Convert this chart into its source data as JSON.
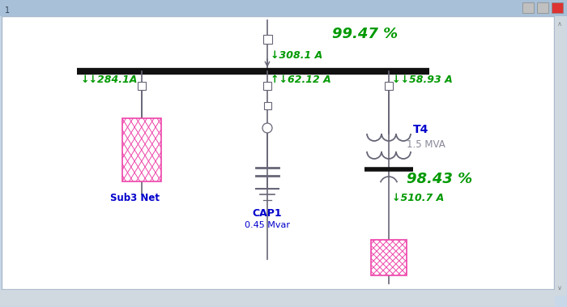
{
  "window_bg": "#c8d8e8",
  "diagram_bg": "#ffffff",
  "busbar_color": "#111111",
  "line_color": "#666677",
  "pink_color": "#ee44aa",
  "green_text_color": "#009900",
  "blue_text_color": "#0000cc",
  "gray_text_color": "#888899",
  "source_label": "308.1 A",
  "source_pct": "99.47 %",
  "load1_label": "↓284.1A",
  "load1_name": "Sub3 Net",
  "load2_label": "↓62.12 A",
  "load2_name": "CAP1",
  "load2_mvar": "0.45 Mvar",
  "load3_label": "↓58.93 A",
  "load3_name": "T4",
  "load3_mva": "1.5 MVA",
  "load3_pct": "98.43 %",
  "load3_current": "↓510.7 A"
}
